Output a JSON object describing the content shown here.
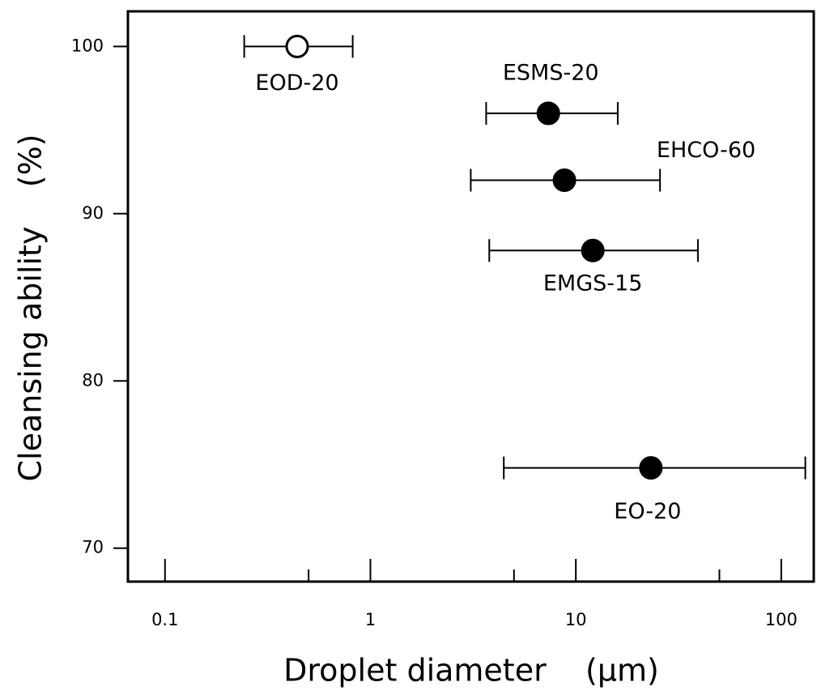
{
  "chart_data": {
    "type": "scatter",
    "x_label": "Droplet diameter    (µm)",
    "y_label": "Cleansing ability    (%)",
    "log_x": true,
    "xlim": [
      0.066,
      144
    ],
    "ylim": [
      68,
      102.1
    ],
    "xticks": [
      0.1,
      1,
      10,
      100
    ],
    "xminorticks": [
      0.5,
      5,
      50
    ],
    "yticks": [
      70,
      80,
      90,
      100
    ],
    "series": [
      {
        "labels": [
          "EOD-20",
          "ESMS-20",
          "EHCO-60",
          "EMGS-15",
          "EO-20"
        ],
        "x": [
          0.44,
          7.35,
          8.8,
          12.1,
          23.2
        ],
        "x_low": [
          0.243,
          3.66,
          3.08,
          3.79,
          4.46
        ],
        "x_high": [
          0.82,
          16.0,
          25.7,
          39.3,
          131
        ],
        "values": [
          100,
          96,
          92,
          87.8,
          74.8
        ],
        "marker_fill": [
          "#ffffff",
          "#000000",
          "#000000",
          "#000000",
          "#000000"
        ],
        "color": "#000000"
      }
    ]
  }
}
